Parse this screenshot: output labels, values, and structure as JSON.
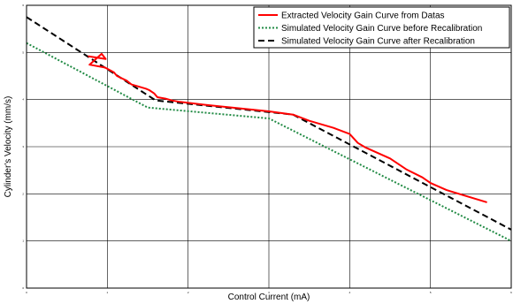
{
  "chart_data": {
    "type": "line",
    "title": "",
    "xlabel": "Control Current (mA)",
    "ylabel": "Cylinder's Velocity (mm/s)",
    "xlim": [
      0,
      6
    ],
    "ylim": [
      0,
      6
    ],
    "x_ticks": [
      0,
      1,
      2,
      3,
      4,
      5,
      6
    ],
    "y_ticks": [
      0,
      1,
      2,
      3,
      4,
      5,
      6
    ],
    "grid": true,
    "legend_position": "top-right",
    "series": [
      {
        "name": "Extracted Velocity Gain Curve from Datas",
        "color": "#ff0000",
        "style": "solid",
        "x": [
          0.76,
          0.98,
          0.93,
          0.78,
          0.97,
          1.08,
          1.12,
          1.24,
          1.3,
          1.48,
          1.52,
          1.58,
          1.62,
          1.72,
          1.8,
          1.9,
          2.2,
          2.6,
          3.0,
          3.3,
          3.5,
          3.8,
          4.0,
          4.1,
          4.2,
          4.5,
          4.7,
          4.9,
          5.0,
          5.2,
          5.7
        ],
        "y": [
          4.92,
          4.86,
          4.97,
          4.74,
          4.68,
          4.58,
          4.5,
          4.4,
          4.32,
          4.23,
          4.2,
          4.13,
          4.05,
          4.02,
          3.98,
          3.95,
          3.89,
          3.82,
          3.75,
          3.68,
          3.55,
          3.4,
          3.27,
          3.08,
          2.98,
          2.75,
          2.52,
          2.35,
          2.23,
          2.08,
          1.82
        ]
      },
      {
        "name": "Simulated Velocity Gain Curve before Recalibration",
        "color": "#228b45",
        "style": "dotted",
        "x": [
          0,
          1.5,
          3.0,
          6.0
        ],
        "y": [
          5.2,
          3.83,
          3.6,
          1.0
        ]
      },
      {
        "name": "Simulated Velocity Gain Curve after Recalibration",
        "color": "#000000",
        "style": "dashed",
        "x": [
          0,
          1.6,
          3.3,
          6.0
        ],
        "y": [
          5.75,
          3.98,
          3.68,
          1.24
        ]
      }
    ]
  }
}
